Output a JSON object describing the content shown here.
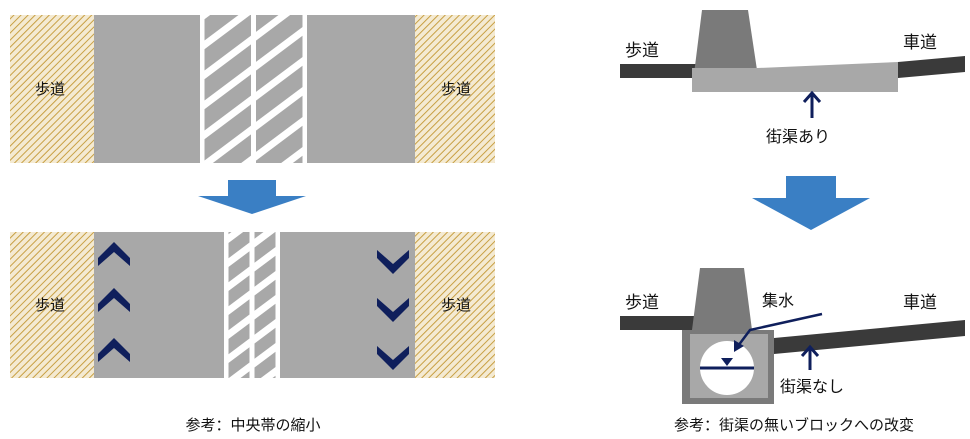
{
  "colors": {
    "sidewalk_base": "#f4ead2",
    "sidewalk_hatch": "#c8a044",
    "road": "#a8a8a8",
    "road_dark": "#7a7a7a",
    "road_line": "#3a3a3a",
    "stripe": "#ffffff",
    "arrow": "#3a7fc4",
    "chevron": "#0f1f5c"
  },
  "left_panel": {
    "top": {
      "sidewalk_left": "歩道",
      "sidewalk_right": "歩道"
    },
    "bottom": {
      "sidewalk_left": "歩道",
      "sidewalk_right": "歩道"
    },
    "caption": "参考：中央帯の縮小"
  },
  "right_panel": {
    "top": {
      "sidewalk_label": "歩道",
      "roadway_label": "車道",
      "gutter_label": "街渠あり"
    },
    "bottom": {
      "sidewalk_label": "歩道",
      "roadway_label": "車道",
      "collector_label": "集水",
      "gutter_label": "街渠なし"
    },
    "caption": "参考：街渠の無いブロックへの改変"
  }
}
